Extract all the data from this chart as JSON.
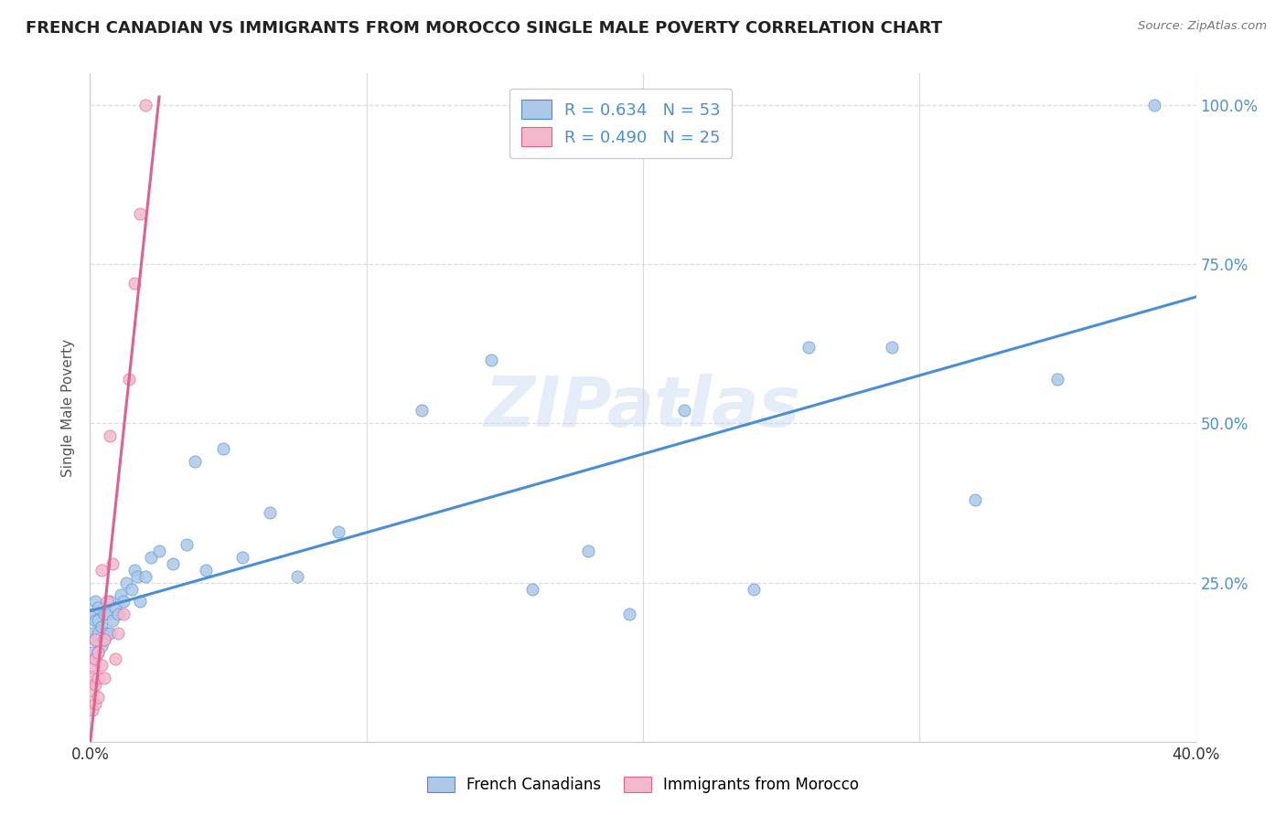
{
  "title": "FRENCH CANADIAN VS IMMIGRANTS FROM MOROCCO SINGLE MALE POVERTY CORRELATION CHART",
  "source": "Source: ZipAtlas.com",
  "ylabel": "Single Male Poverty",
  "watermark": "ZIPatlas",
  "blue_R": 0.634,
  "blue_N": 53,
  "pink_R": 0.49,
  "pink_N": 25,
  "blue_color": "#adc8e8",
  "pink_color": "#f2b8cc",
  "blue_line_color": "#4a8fd4",
  "pink_line_color": "#e06090",
  "legend_blue_label": "French Canadians",
  "legend_pink_label": "Immigrants from Morocco",
  "x_min": 0.0,
  "x_max": 0.4,
  "y_min": 0.0,
  "y_max": 1.05,
  "blue_scatter_x": [
    0.001,
    0.001,
    0.001,
    0.002,
    0.002,
    0.002,
    0.002,
    0.003,
    0.003,
    0.003,
    0.003,
    0.004,
    0.004,
    0.005,
    0.005,
    0.006,
    0.006,
    0.007,
    0.007,
    0.008,
    0.009,
    0.01,
    0.011,
    0.012,
    0.013,
    0.015,
    0.016,
    0.017,
    0.018,
    0.02,
    0.022,
    0.025,
    0.03,
    0.035,
    0.038,
    0.042,
    0.048,
    0.055,
    0.065,
    0.075,
    0.09,
    0.12,
    0.145,
    0.16,
    0.18,
    0.195,
    0.215,
    0.24,
    0.26,
    0.29,
    0.32,
    0.35,
    0.385
  ],
  "blue_scatter_y": [
    0.14,
    0.17,
    0.2,
    0.13,
    0.16,
    0.19,
    0.22,
    0.14,
    0.17,
    0.19,
    0.21,
    0.15,
    0.18,
    0.16,
    0.2,
    0.17,
    0.2,
    0.17,
    0.22,
    0.19,
    0.21,
    0.2,
    0.23,
    0.22,
    0.25,
    0.24,
    0.27,
    0.26,
    0.22,
    0.26,
    0.29,
    0.3,
    0.28,
    0.31,
    0.44,
    0.27,
    0.46,
    0.29,
    0.36,
    0.26,
    0.33,
    0.52,
    0.6,
    0.24,
    0.3,
    0.2,
    0.52,
    0.24,
    0.62,
    0.62,
    0.38,
    0.57,
    1.0
  ],
  "pink_scatter_x": [
    0.001,
    0.001,
    0.001,
    0.001,
    0.002,
    0.002,
    0.002,
    0.002,
    0.003,
    0.003,
    0.003,
    0.004,
    0.004,
    0.005,
    0.005,
    0.006,
    0.007,
    0.008,
    0.009,
    0.01,
    0.012,
    0.014,
    0.016,
    0.018,
    0.02
  ],
  "pink_scatter_y": [
    0.05,
    0.08,
    0.1,
    0.12,
    0.06,
    0.09,
    0.13,
    0.16,
    0.07,
    0.1,
    0.14,
    0.12,
    0.27,
    0.1,
    0.16,
    0.22,
    0.48,
    0.28,
    0.13,
    0.17,
    0.2,
    0.57,
    0.72,
    0.83,
    1.0
  ],
  "pink_line_x_end": 0.025,
  "right_ytick_labels": [
    "100.0%",
    "75.0%",
    "50.0%",
    "25.0%",
    ""
  ],
  "right_ytick_values": [
    1.0,
    0.75,
    0.5,
    0.25,
    0.0
  ],
  "xtick_positions": [
    0.0,
    0.4
  ],
  "xtick_labels": [
    "0.0%",
    "40.0%"
  ],
  "grid_yticks": [
    0.0,
    0.25,
    0.5,
    0.75,
    1.0
  ],
  "grid_color": "#d8dde8",
  "title_fontsize": 13,
  "axis_label_color": "#555555",
  "right_tick_color": "#5090d0"
}
